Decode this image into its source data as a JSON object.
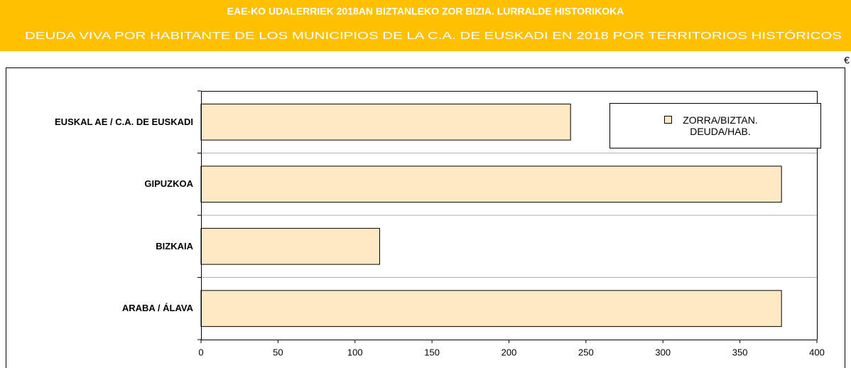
{
  "chart_data": {
    "type": "bar",
    "orientation": "horizontal",
    "title": "EAE-KO UDALERRIEK 2018AN BIZTANLEKO ZOR BIZIA. LURRALDE HISTORIKOKA",
    "subtitle": "DEUDA VIVA POR HABITANTE DE LOS MUNICIPIOS DE LA C.A. DE EUSKADI EN 2018 POR TERRITORIOS HISTÓRICOS",
    "unit": "€",
    "categories": [
      "EUSKAL AE / C.A. DE EUSKADI",
      "GIPUZKOA",
      "BIZKAIA",
      "ARABA / ÁLAVA"
    ],
    "series": [
      {
        "name": "ZORRA/BIZTAN. DEUDA/HAB.",
        "color": "#fde9c4",
        "values": [
          240,
          377,
          116,
          377
        ]
      }
    ],
    "xlim": [
      0,
      400
    ],
    "xticks": [
      0,
      50,
      100,
      150,
      200,
      250,
      300,
      350,
      400
    ],
    "grid": true,
    "legend": "top-right"
  }
}
